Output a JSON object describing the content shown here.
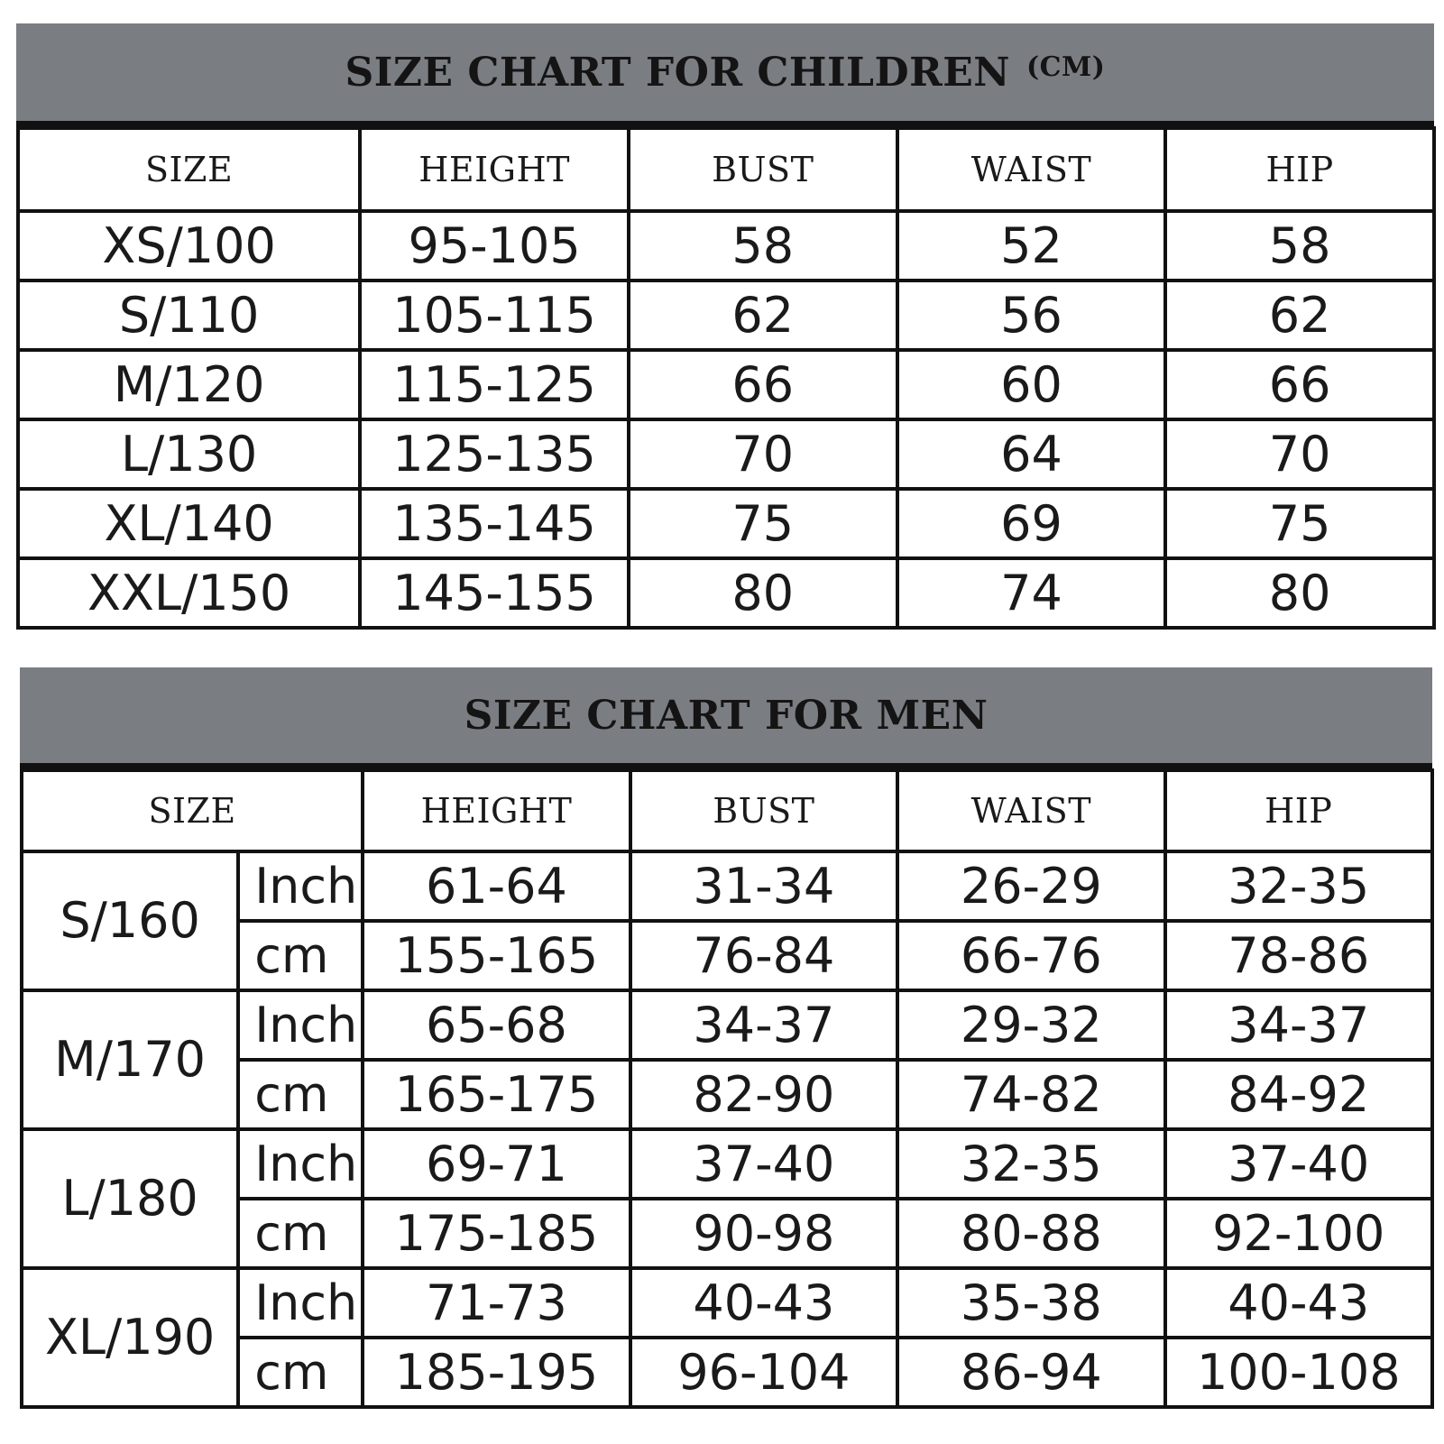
{
  "children": {
    "title": "SIZE CHART FOR CHILDREN",
    "title_unit": "(CM)",
    "headers": [
      "SIZE",
      "HEIGHT",
      "BUST",
      "WAIST",
      "HIP"
    ],
    "rows": [
      [
        "XS/100",
        "95-105",
        "58",
        "52",
        "58"
      ],
      [
        "S/110",
        "105-115",
        "62",
        "56",
        "62"
      ],
      [
        "M/120",
        "115-125",
        "66",
        "60",
        "66"
      ],
      [
        "L/130",
        "125-135",
        "70",
        "64",
        "70"
      ],
      [
        "XL/140",
        "135-145",
        "75",
        "69",
        "75"
      ],
      [
        "XXL/150",
        "145-155",
        "80",
        "74",
        "80"
      ]
    ]
  },
  "men": {
    "title": "SIZE CHART FOR MEN",
    "headers": [
      "SIZE",
      "HEIGHT",
      "BUST",
      "WAIST",
      "HIP"
    ],
    "sizes": [
      {
        "size": "S/160",
        "rows": [
          [
            "Inch",
            "61-64",
            "31-34",
            "26-29",
            "32-35"
          ],
          [
            "cm",
            "155-165",
            "76-84",
            "66-76",
            "78-86"
          ]
        ]
      },
      {
        "size": "M/170",
        "rows": [
          [
            "Inch",
            "65-68",
            "34-37",
            "29-32",
            "34-37"
          ],
          [
            "cm",
            "165-175",
            "82-90",
            "74-82",
            "84-92"
          ]
        ]
      },
      {
        "size": "L/180",
        "rows": [
          [
            "Inch",
            "69-71",
            "37-40",
            "32-35",
            "37-40"
          ],
          [
            "cm",
            "175-185",
            "90-98",
            "80-88",
            "92-100"
          ]
        ]
      },
      {
        "size": "XL/190",
        "rows": [
          [
            "Inch",
            "71-73",
            "40-43",
            "35-38",
            "40-43"
          ],
          [
            "cm",
            "185-195",
            "96-104",
            "86-94",
            "100-108"
          ]
        ]
      }
    ]
  },
  "colors": {
    "banner": "#7a7d82",
    "lines": "#111111",
    "text": "#1a1a1a"
  }
}
